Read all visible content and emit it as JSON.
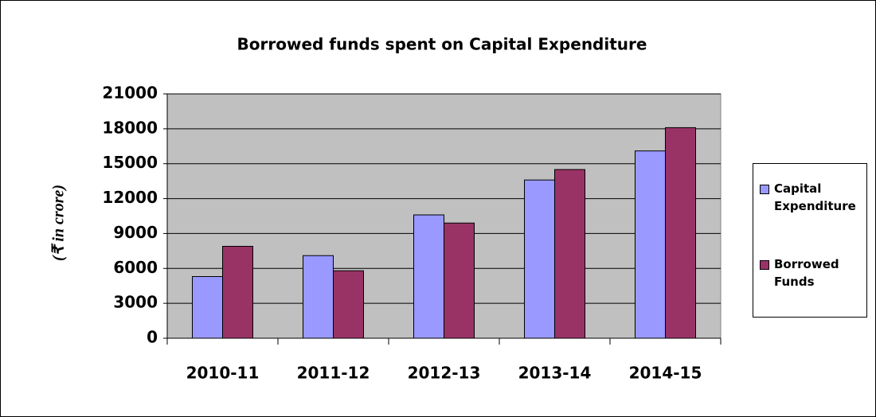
{
  "chart_data": {
    "type": "bar",
    "title": "Borrowed funds spent on Capital Expenditure",
    "y_label": "(₹ in crore)",
    "categories": [
      "2010-11",
      "2011-12",
      "2012-13",
      "2013-14",
      "2014-15"
    ],
    "series": [
      {
        "name": "Capital Expenditure",
        "color": "#9999ff",
        "values": [
          5300,
          7100,
          10600,
          13600,
          16100
        ]
      },
      {
        "name": "Borrowed Funds",
        "color": "#993366",
        "values": [
          7900,
          5800,
          9900,
          14500,
          18100
        ]
      }
    ],
    "ylim": [
      0,
      21000
    ],
    "yticks": [
      0,
      3000,
      6000,
      9000,
      12000,
      15000,
      18000,
      21000
    ],
    "grid": true,
    "legend": "right"
  }
}
